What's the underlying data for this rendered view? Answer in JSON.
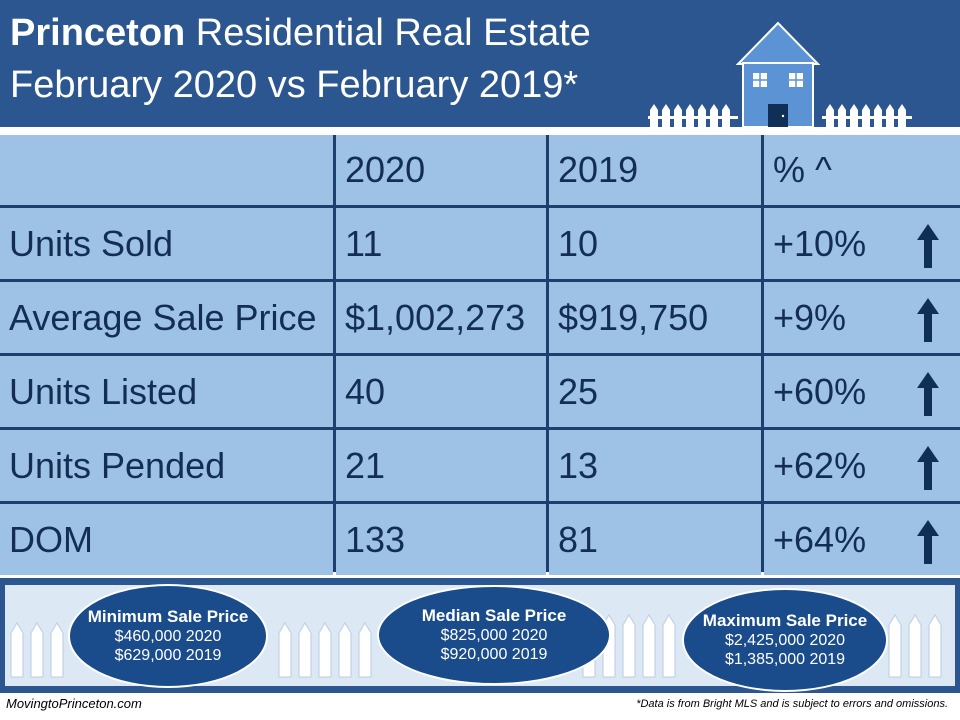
{
  "header": {
    "title_bold": "Princeton",
    "title_rest": " Residential Real Estate",
    "subtitle": "February 2020 vs February 2019*"
  },
  "colors": {
    "header_bg": "#2b5690",
    "cell_bg": "#9ec2e6",
    "grid_lines": "#1d3f6e",
    "oval_bg": "#1a4c8c",
    "arrow": "#0f2f57"
  },
  "table": {
    "headers": [
      "",
      "2020",
      "2019",
      "% ^"
    ],
    "rows": [
      {
        "label": "Units Sold",
        "y2020": "11",
        "y2019": "10",
        "pct": "+10%",
        "trend": "up-arrow-icon"
      },
      {
        "label": "Average Sale Price",
        "y2020": "$1,002,273",
        "y2019": "$919,750",
        "pct": "+9%",
        "trend": "up-arrow-icon"
      },
      {
        "label": "Units Listed",
        "y2020": "40",
        "y2019": "25",
        "pct": "+60%",
        "trend": "up-arrow-icon"
      },
      {
        "label": "Units Pended",
        "y2020": "21",
        "y2019": "13",
        "pct": "+62%",
        "trend": "up-arrow-icon"
      },
      {
        "label": "DOM",
        "y2020": "133",
        "y2019": "81",
        "pct": "+64%",
        "trend": "up-arrow-icon"
      }
    ]
  },
  "summary": {
    "min": {
      "title": "Minimum Sale Price",
      "line1": "$460,000  2020",
      "line2": "$629,000 2019"
    },
    "median": {
      "title": "Median Sale Price",
      "line1": "$825,000 2020",
      "line2": "$920,000 2019"
    },
    "max": {
      "title": "Maximum Sale Price",
      "line1": "$2,425,000 2020",
      "line2": "$1,385,000 2019"
    }
  },
  "footer": {
    "site": "MovingtoPrinceton.com",
    "disclaimer": "*Data is from Bright MLS and is subject to errors and omissions."
  }
}
